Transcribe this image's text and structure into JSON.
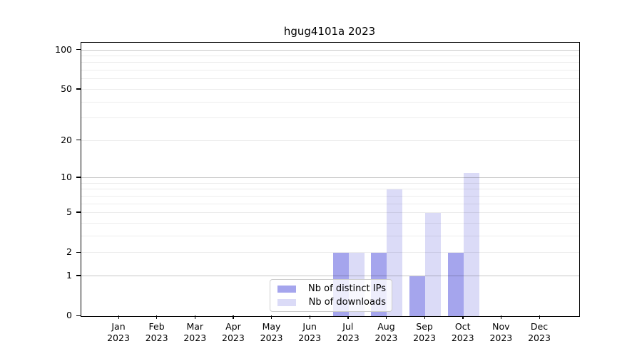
{
  "chart_data": {
    "type": "bar",
    "title": "hgug4101a 2023",
    "categories": [
      "Jan",
      "Feb",
      "Mar",
      "Apr",
      "May",
      "Jun",
      "Jul",
      "Aug",
      "Sep",
      "Oct",
      "Nov",
      "Dec"
    ],
    "category_year": "2023",
    "series": [
      {
        "name": "Nb of distinct IPs",
        "color": "#a5a5ed",
        "values": [
          0,
          0,
          0,
          0,
          0,
          0,
          2,
          2,
          1,
          2,
          0,
          0
        ]
      },
      {
        "name": "Nb of downloads",
        "color": "#dbdbf7",
        "values": [
          0,
          0,
          0,
          0,
          0,
          0,
          2,
          8,
          5,
          11,
          0,
          0
        ]
      }
    ],
    "y_axis": {
      "scale": "log1p",
      "tick_values": [
        0,
        1,
        2,
        5,
        10,
        20,
        50,
        100
      ],
      "tick_labels": [
        "0",
        "1",
        "2",
        "5",
        "10",
        "20",
        "50",
        "100"
      ],
      "max": 114
    },
    "x_axis": {
      "tick_label_format": "month over year"
    },
    "gridlines": {
      "major": [
        1,
        10,
        100
      ],
      "minor": [
        2,
        3,
        4,
        5,
        6,
        7,
        8,
        9,
        20,
        30,
        40,
        50,
        60,
        70,
        80,
        90
      ],
      "drawn_over_bars": true
    },
    "legend": {
      "position": "lower center inside plot",
      "entries": [
        "Nb of distinct IPs",
        "Nb of downloads"
      ]
    }
  }
}
